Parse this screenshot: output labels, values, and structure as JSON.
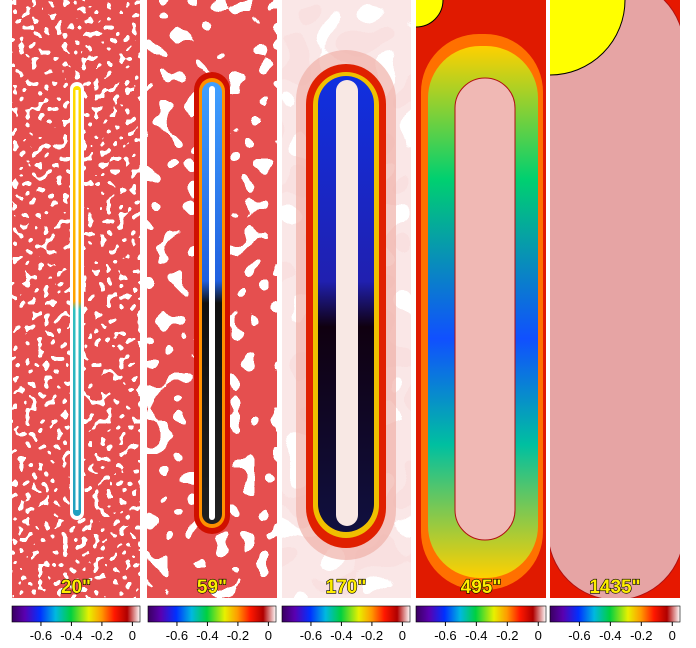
{
  "panels": [
    {
      "label": "20\""
    },
    {
      "label": "59\""
    },
    {
      "label": "170\""
    },
    {
      "label": "495\""
    },
    {
      "label": "1435\""
    }
  ],
  "colorbar": {
    "clim": [
      -0.79,
      0.05
    ],
    "ticks": [
      -0.6,
      -0.4,
      -0.2,
      0
    ]
  }
}
